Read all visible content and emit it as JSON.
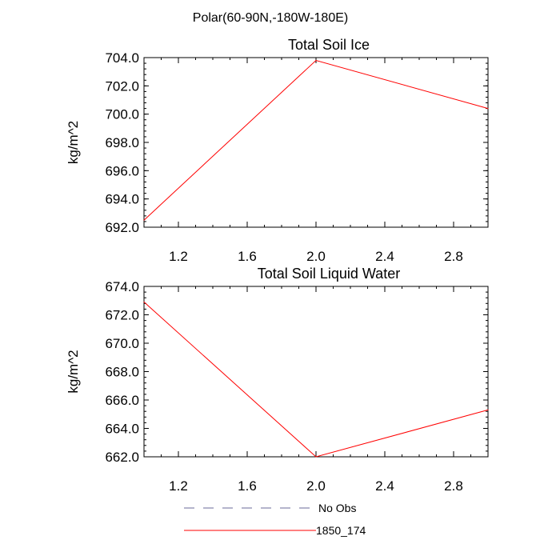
{
  "figure": {
    "title": "Polar(60-90N,-180W-180E)"
  },
  "chart_data": [
    {
      "type": "line",
      "title": "Total Soil Ice",
      "xlabel": "",
      "ylabel": "kg/m^2",
      "xlim": [
        1.0,
        3.0
      ],
      "ylim": [
        692.0,
        704.0
      ],
      "x_ticks": [
        1.2,
        1.6,
        2.0,
        2.4,
        2.8
      ],
      "x_tick_labels": [
        "1.2",
        "1.6",
        "2.0",
        "2.4",
        "2.8"
      ],
      "y_ticks": [
        692.0,
        694.0,
        696.0,
        698.0,
        700.0,
        702.0,
        704.0
      ],
      "y_tick_labels": [
        "692.0",
        "694.0",
        "696.0",
        "698.0",
        "700.0",
        "702.0",
        "704.0"
      ],
      "grid": false,
      "series": [
        {
          "name": "1850_174",
          "color": "#ff0000",
          "x": [
            1.0,
            2.0,
            3.0
          ],
          "y": [
            692.5,
            703.8,
            700.4
          ]
        }
      ]
    },
    {
      "type": "line",
      "title": "Total Soil Liquid Water",
      "xlabel": "",
      "ylabel": "kg/m^2",
      "xlim": [
        1.0,
        3.0
      ],
      "ylim": [
        662.0,
        674.0
      ],
      "x_ticks": [
        1.2,
        1.6,
        2.0,
        2.4,
        2.8
      ],
      "x_tick_labels": [
        "1.2",
        "1.6",
        "2.0",
        "2.4",
        "2.8"
      ],
      "y_ticks": [
        662.0,
        664.0,
        666.0,
        668.0,
        670.0,
        672.0,
        674.0
      ],
      "y_tick_labels": [
        "662.0",
        "664.0",
        "666.0",
        "668.0",
        "670.0",
        "672.0",
        "674.0"
      ],
      "grid": false,
      "series": [
        {
          "name": "1850_174",
          "color": "#ff0000",
          "x": [
            1.0,
            2.0,
            3.0
          ],
          "y": [
            672.9,
            662.0,
            665.3
          ]
        }
      ]
    }
  ],
  "legend": {
    "placement": "bottom",
    "items": [
      {
        "label": "No Obs",
        "color": "#6a6a9a",
        "dash": "dashed"
      },
      {
        "label": "1850_174",
        "color": "#ff0000",
        "dash": "solid"
      }
    ]
  }
}
